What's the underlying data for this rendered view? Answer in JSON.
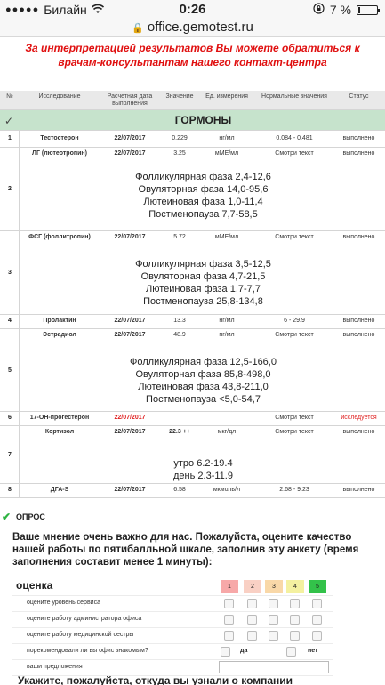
{
  "status_bar": {
    "carrier": "Билайн",
    "time": "0:26",
    "battery": "7 %"
  },
  "url_bar": {
    "domain": "office.gemotest.ru"
  },
  "notice": "За интерпретацией результатов Вы можете обратиться к врачам-консультантам нашего контакт-центра",
  "table": {
    "headers": {
      "num": "№",
      "test": "Исследование",
      "date": "Расчетная дата выполнения",
      "value": "Значение",
      "unit": "Ед. измерения",
      "normal": "Нормальные значения",
      "status": "Статус"
    },
    "group_title": "ГОРМОНЫ",
    "rows": [
      {
        "num": "1",
        "name": "Тестостерон",
        "date": "22/07/2017",
        "value": "0.229",
        "unit": "нг/мл",
        "normal": "0.084 - 0.481",
        "status": "выполнено"
      },
      {
        "num": "2",
        "name": "ЛГ (лютеотропин)",
        "date": "22/07/2017",
        "value": "3.25",
        "unit": "мМЕ/мл",
        "normal": "Смотри текст",
        "status": "выполнено",
        "desc": [
          "Фолликулярная фаза 2,4-12,6",
          "Овуляторная фаза 14,0-95,6",
          "Лютеиновая фаза 1,0-11,4",
          "Постменопауза 7,7-58,5"
        ]
      },
      {
        "num": "3",
        "name": "ФСГ (фоллитропин)",
        "date": "22/07/2017",
        "value": "5.72",
        "unit": "мМЕ/мл",
        "normal": "Смотри текст",
        "status": "выполнено",
        "desc": [
          "Фолликулярная фаза 3,5-12,5",
          "Овуляторная фаза 4,7-21,5",
          "Лютеиновая фаза 1,7-7,7",
          "Постменопауза 25,8-134,8"
        ]
      },
      {
        "num": "4",
        "name": "Пролактин",
        "date": "22/07/2017",
        "value": "13.3",
        "unit": "нг/мл",
        "normal": "6 - 29.9",
        "status": "выполнено"
      },
      {
        "num": "5",
        "name": "Эстрадиол",
        "date": "22/07/2017",
        "value": "48.9",
        "unit": "пг/мл",
        "normal": "Смотри текст",
        "status": "выполнено",
        "desc": [
          "Фолликулярная фаза 12,5-166,0",
          "Овуляторная фаза 85,8-498,0",
          "Лютеиновая фаза 43,8-211,0",
          "Постменопауза <5,0-54,7"
        ]
      },
      {
        "num": "6",
        "name": "17-ОН-прогестерон",
        "date": "22/07/2017",
        "value": "",
        "unit": "",
        "normal": "Смотри текст",
        "status": "исследуется"
      },
      {
        "num": "7",
        "name": "Кортизол",
        "date": "22/07/2017",
        "value": "22.3 ++",
        "unit": "мкг/дл",
        "normal": "Смотри текст",
        "status": "выполнено",
        "desc": [
          "утро 6.2-19.4",
          "день 2.3-11.9"
        ]
      },
      {
        "num": "8",
        "name": "ДГА-S",
        "date": "22/07/2017",
        "value": "6.58",
        "unit": "мкмоль/л",
        "normal": "2.68 - 9.23",
        "status": "выполнено"
      }
    ]
  },
  "survey": {
    "header": "ОПРОС",
    "intro": "Ваше мнение очень важно для нас. Пожалуйста, оцените качество нашей работы по пятибалльной шкале, заполнив эту анкету (время заполнения составит менее 1 минуты):",
    "rating_title": "оценка",
    "scale": [
      "1",
      "2",
      "3",
      "4",
      "5"
    ],
    "scale_colors": [
      "#f7a8a8",
      "#f9d0c4",
      "#f9d8a8",
      "#f4f1a0",
      "#33c24a"
    ],
    "questions": [
      "оцените уровень сервиса",
      "оцените работу администратора офиса",
      "оцените работу медицинской сестры"
    ],
    "recommend_label": "порекомендовали ли вы офис знакомым?",
    "yes": "да",
    "no": "нет",
    "suggestions_label": "ваши предложения",
    "next_question": "Укажите, пожалуйста, откуда вы узнали о компании"
  }
}
